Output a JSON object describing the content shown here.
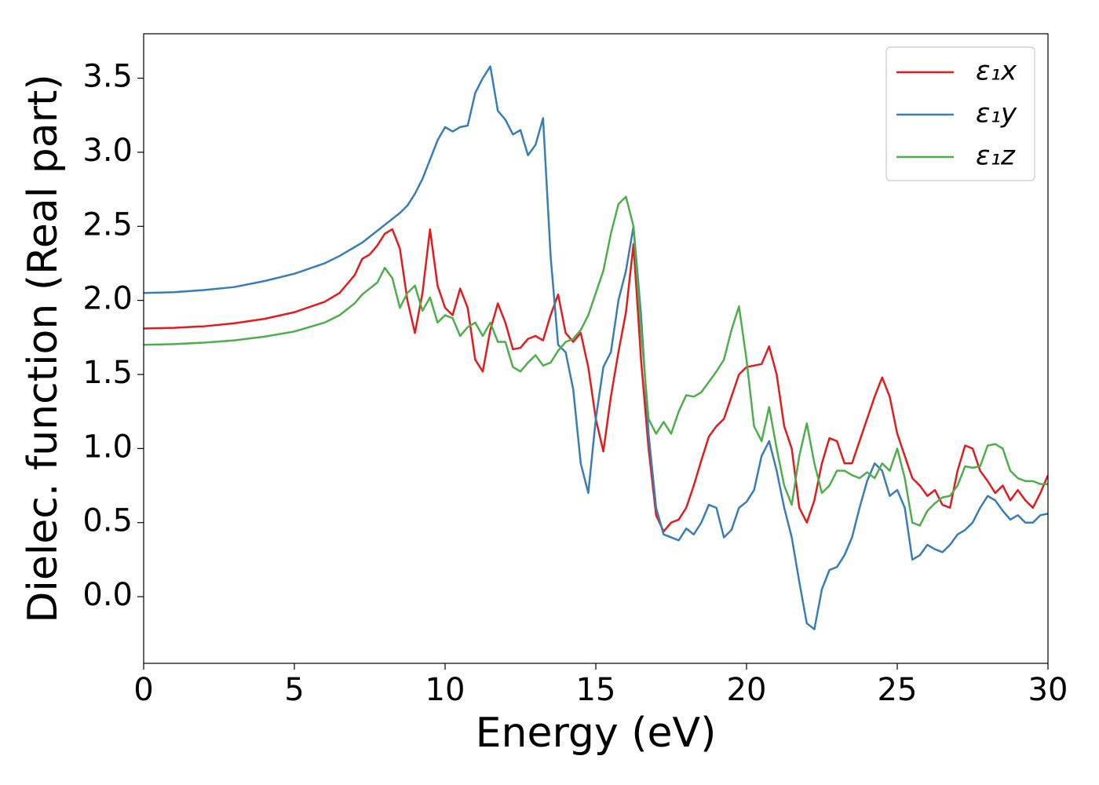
{
  "chart_data": {
    "type": "line",
    "xlabel": "Energy (eV)",
    "ylabel": "Dielec. function (Real part)",
    "xlim": [
      0,
      30
    ],
    "ylim": [
      -0.45,
      3.8
    ],
    "xticks": [
      0,
      5,
      10,
      15,
      20,
      25,
      30
    ],
    "yticks": [
      {
        "value": 0,
        "label": "0.0"
      },
      {
        "value": 0.5,
        "label": "0.5"
      },
      {
        "value": 1,
        "label": "1.0"
      },
      {
        "value": 1.5,
        "label": "1.5"
      },
      {
        "value": 2,
        "label": "2.0"
      },
      {
        "value": 2.5,
        "label": "2.5"
      },
      {
        "value": 3,
        "label": "3.0"
      },
      {
        "value": 3.5,
        "label": "3.5"
      }
    ],
    "grid": false,
    "legend": "upper right",
    "x": [
      0,
      1,
      2,
      3,
      4,
      5,
      6,
      6.5,
      7,
      7.25,
      7.5,
      7.75,
      8,
      8.25,
      8.5,
      8.75,
      9,
      9.25,
      9.5,
      9.75,
      10,
      10.25,
      10.5,
      10.75,
      11,
      11.25,
      11.5,
      11.75,
      12,
      12.25,
      12.5,
      12.75,
      13,
      13.25,
      13.5,
      13.75,
      14,
      14.25,
      14.5,
      14.75,
      15,
      15.25,
      15.5,
      15.75,
      16,
      16.25,
      16.5,
      16.75,
      17,
      17.25,
      17.5,
      17.75,
      18,
      18.25,
      18.5,
      18.75,
      19,
      19.25,
      19.5,
      19.75,
      20,
      20.25,
      20.5,
      20.75,
      21,
      21.25,
      21.5,
      21.75,
      22,
      22.25,
      22.5,
      22.75,
      23,
      23.25,
      23.5,
      23.75,
      24,
      24.25,
      24.5,
      24.75,
      25,
      25.25,
      25.5,
      25.75,
      26,
      26.25,
      26.5,
      26.75,
      27,
      27.25,
      27.5,
      27.75,
      28,
      28.25,
      28.5,
      28.75,
      29,
      29.25,
      29.5,
      29.75,
      30
    ],
    "series": [
      {
        "name": "ε₁x",
        "color": "#e41a1c",
        "values": [
          1.81,
          1.815,
          1.825,
          1.845,
          1.875,
          1.92,
          1.99,
          2.05,
          2.17,
          2.28,
          2.31,
          2.37,
          2.45,
          2.48,
          2.35,
          2.0,
          1.78,
          2.05,
          2.48,
          2.1,
          1.95,
          1.9,
          2.08,
          1.95,
          1.6,
          1.52,
          1.8,
          1.98,
          1.85,
          1.67,
          1.68,
          1.74,
          1.76,
          1.73,
          1.9,
          2.04,
          1.78,
          1.72,
          1.78,
          1.55,
          1.2,
          0.98,
          1.35,
          1.65,
          1.92,
          2.38,
          1.6,
          1.0,
          0.55,
          0.44,
          0.5,
          0.52,
          0.6,
          0.75,
          0.92,
          1.08,
          1.15,
          1.2,
          1.35,
          1.5,
          1.55,
          1.56,
          1.57,
          1.69,
          1.5,
          1.15,
          1.0,
          0.6,
          0.5,
          0.65,
          0.9,
          1.07,
          1.05,
          0.9,
          0.9,
          1.05,
          1.2,
          1.35,
          1.48,
          1.35,
          1.1,
          0.95,
          0.8,
          0.75,
          0.68,
          0.72,
          0.62,
          0.6,
          0.85,
          1.02,
          1.0,
          0.85,
          0.78,
          0.7,
          0.75,
          0.65,
          0.72,
          0.65,
          0.6,
          0.7,
          0.82
        ]
      },
      {
        "name": "ε₁y",
        "color": "#377eb8",
        "values": [
          2.05,
          2.055,
          2.07,
          2.09,
          2.13,
          2.18,
          2.25,
          2.3,
          2.36,
          2.39,
          2.43,
          2.47,
          2.51,
          2.55,
          2.59,
          2.64,
          2.72,
          2.82,
          2.95,
          3.08,
          3.17,
          3.14,
          3.17,
          3.18,
          3.4,
          3.5,
          3.58,
          3.28,
          3.22,
          3.12,
          3.15,
          2.98,
          3.05,
          3.23,
          2.3,
          1.7,
          1.65,
          1.4,
          0.9,
          0.7,
          1.2,
          1.55,
          1.65,
          2.0,
          2.2,
          2.5,
          1.9,
          1.1,
          0.6,
          0.42,
          0.4,
          0.38,
          0.46,
          0.42,
          0.5,
          0.62,
          0.6,
          0.4,
          0.45,
          0.6,
          0.64,
          0.72,
          0.95,
          1.05,
          0.85,
          0.6,
          0.4,
          0.1,
          -0.18,
          -0.22,
          0.05,
          0.18,
          0.2,
          0.28,
          0.4,
          0.6,
          0.78,
          0.9,
          0.85,
          0.68,
          0.72,
          0.6,
          0.25,
          0.28,
          0.35,
          0.32,
          0.3,
          0.35,
          0.42,
          0.45,
          0.5,
          0.6,
          0.68,
          0.65,
          0.58,
          0.52,
          0.55,
          0.5,
          0.5,
          0.55,
          0.56
        ]
      },
      {
        "name": "ε₁z",
        "color": "#4daf4a",
        "values": [
          1.7,
          1.705,
          1.715,
          1.73,
          1.755,
          1.79,
          1.85,
          1.9,
          1.98,
          2.04,
          2.08,
          2.12,
          2.22,
          2.15,
          1.95,
          2.05,
          2.1,
          1.93,
          2.02,
          1.85,
          1.9,
          1.88,
          1.76,
          1.82,
          1.85,
          1.76,
          1.85,
          1.72,
          1.72,
          1.55,
          1.52,
          1.58,
          1.63,
          1.56,
          1.58,
          1.66,
          1.72,
          1.74,
          1.8,
          1.9,
          2.05,
          2.2,
          2.45,
          2.65,
          2.7,
          2.5,
          1.8,
          1.2,
          1.1,
          1.18,
          1.1,
          1.25,
          1.36,
          1.35,
          1.38,
          1.45,
          1.52,
          1.6,
          1.8,
          1.96,
          1.6,
          1.15,
          1.05,
          1.28,
          1.0,
          0.75,
          0.62,
          0.95,
          1.17,
          0.9,
          0.7,
          0.75,
          0.85,
          0.85,
          0.82,
          0.8,
          0.84,
          0.8,
          0.9,
          0.85,
          1.0,
          0.8,
          0.5,
          0.48,
          0.58,
          0.63,
          0.67,
          0.68,
          0.75,
          0.88,
          0.87,
          0.88,
          1.02,
          1.03,
          1.0,
          0.85,
          0.8,
          0.78,
          0.78,
          0.76,
          0.76
        ]
      }
    ]
  }
}
